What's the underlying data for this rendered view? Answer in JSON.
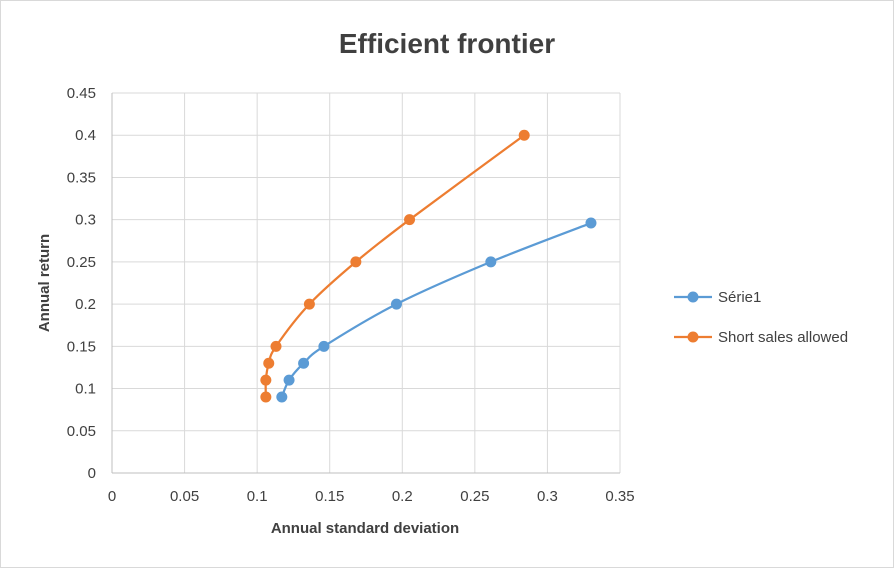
{
  "chart_data": {
    "type": "scatter",
    "title": "Efficient frontier",
    "xlabel": "Annual standard deviation",
    "ylabel": "Annual return",
    "xlim": [
      0,
      0.35
    ],
    "ylim": [
      0,
      0.45
    ],
    "x_ticks": [
      "0",
      "0.05",
      "0.1",
      "0.15",
      "0.2",
      "0.25",
      "0.3",
      "0.35"
    ],
    "y_ticks": [
      "0",
      "0.05",
      "0.1",
      "0.15",
      "0.2",
      "0.25",
      "0.3",
      "0.35",
      "0.4",
      "0.45"
    ],
    "grid": true,
    "legend_position": "right",
    "series": [
      {
        "name": "Série1",
        "color": "#5b9bd5",
        "points": [
          {
            "x": 0.117,
            "y": 0.09
          },
          {
            "x": 0.122,
            "y": 0.11
          },
          {
            "x": 0.132,
            "y": 0.13
          },
          {
            "x": 0.146,
            "y": 0.15
          },
          {
            "x": 0.196,
            "y": 0.2
          },
          {
            "x": 0.261,
            "y": 0.25
          },
          {
            "x": 0.33,
            "y": 0.296
          }
        ]
      },
      {
        "name": "Short sales allowed",
        "color": "#ed7d31",
        "points": [
          {
            "x": 0.106,
            "y": 0.09
          },
          {
            "x": 0.106,
            "y": 0.11
          },
          {
            "x": 0.108,
            "y": 0.13
          },
          {
            "x": 0.113,
            "y": 0.15
          },
          {
            "x": 0.136,
            "y": 0.2
          },
          {
            "x": 0.168,
            "y": 0.25
          },
          {
            "x": 0.205,
            "y": 0.3
          },
          {
            "x": 0.284,
            "y": 0.4
          }
        ]
      }
    ]
  }
}
